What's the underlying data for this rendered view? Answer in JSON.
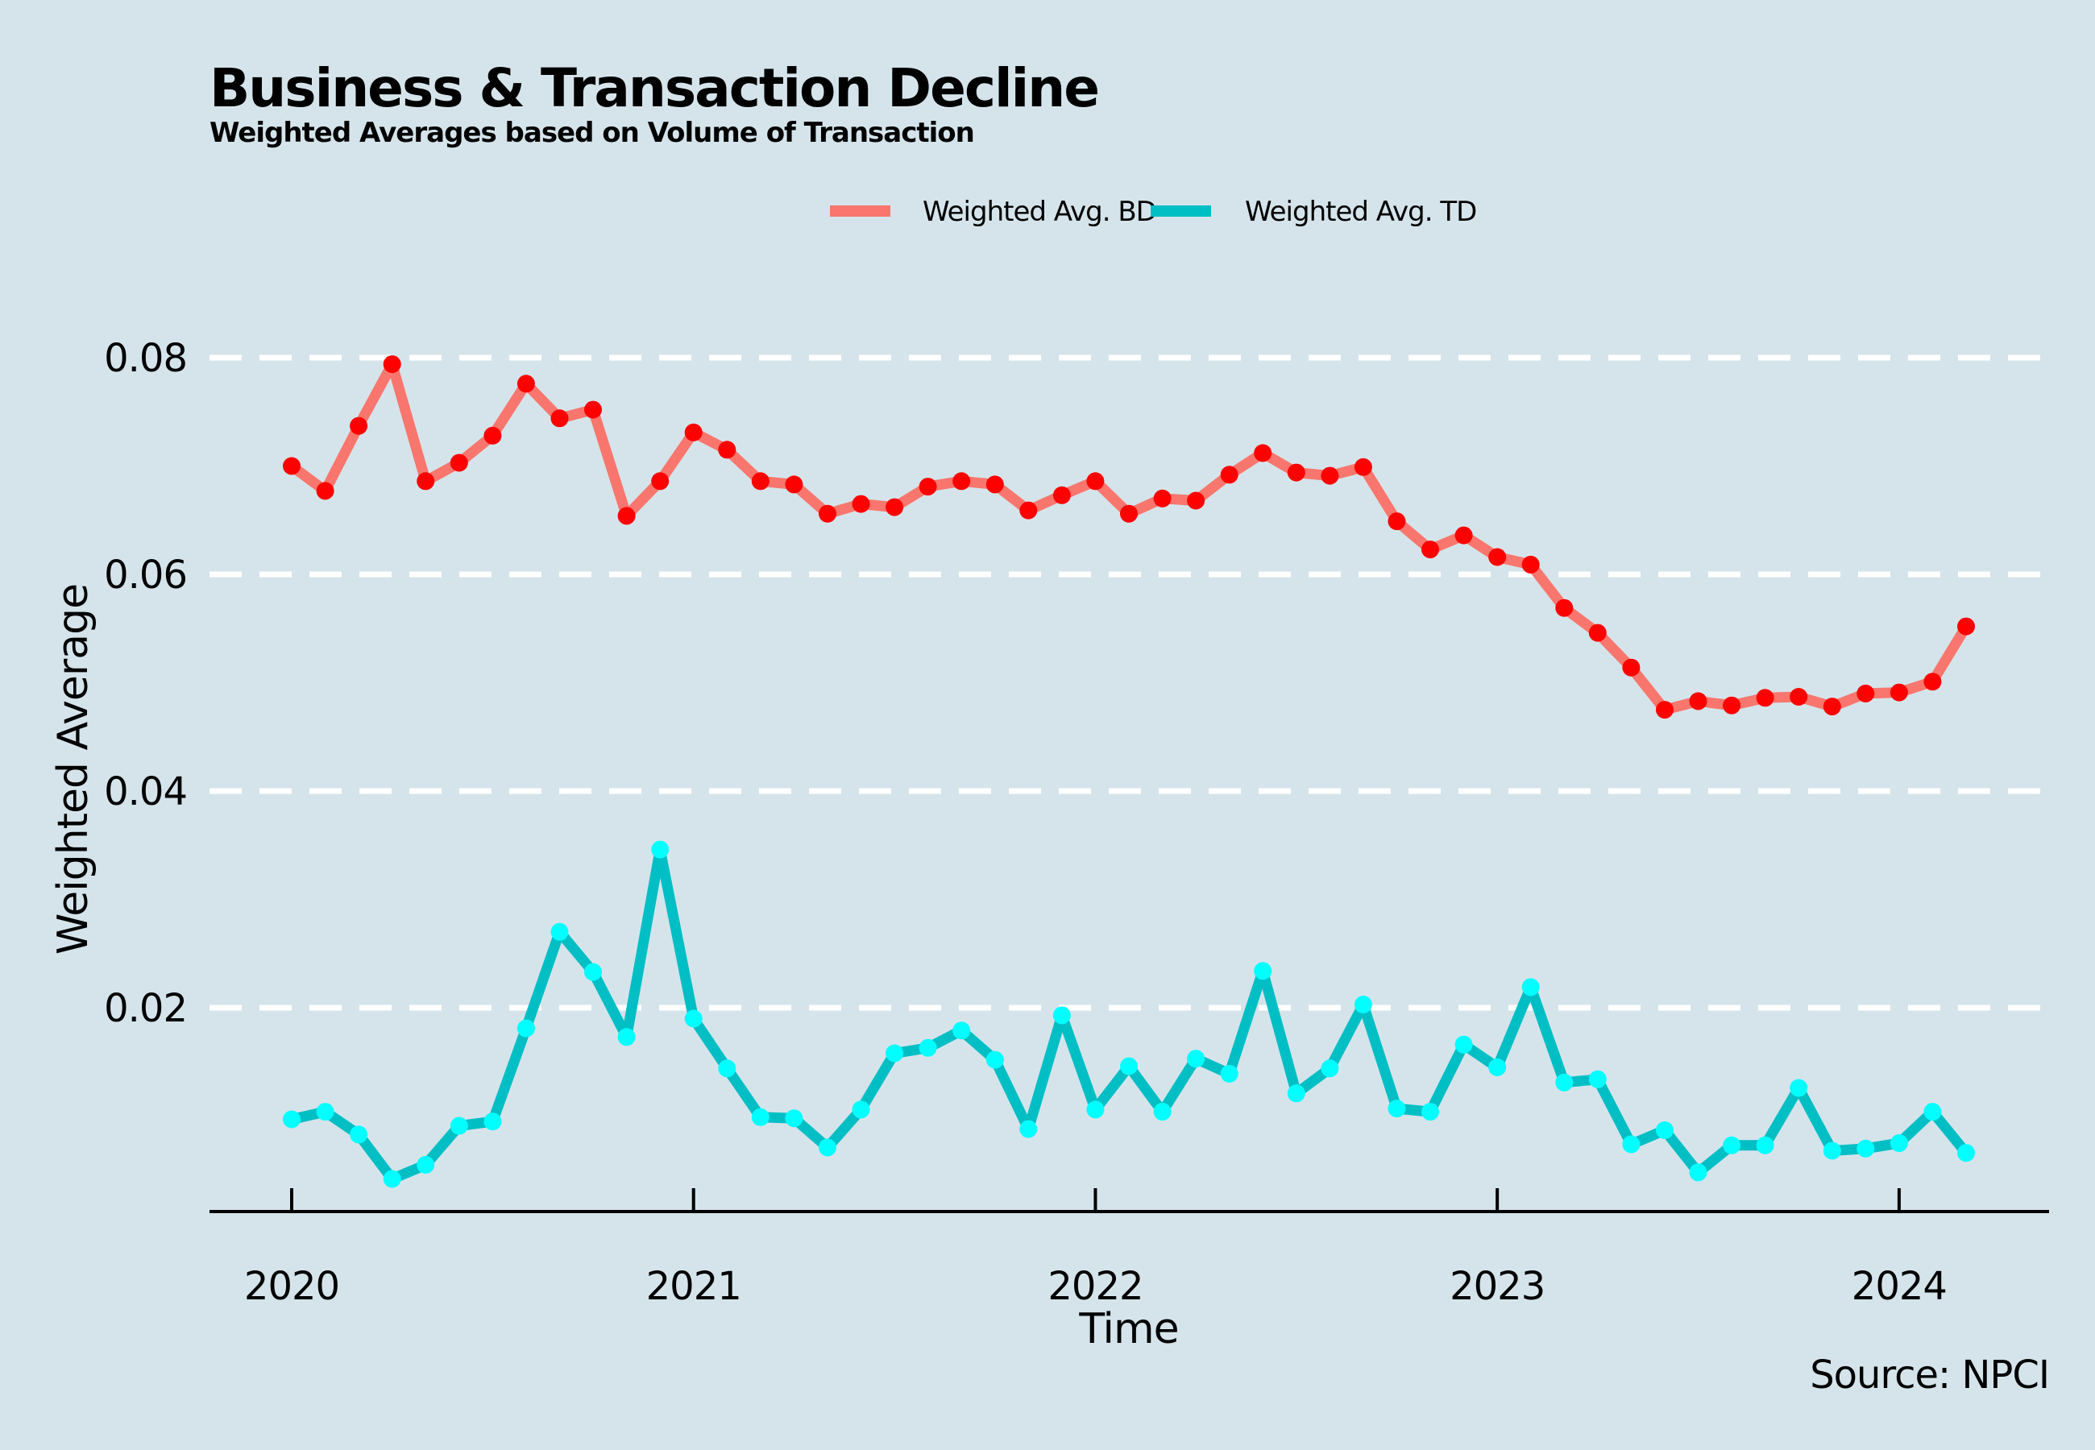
{
  "chart_data": {
    "type": "line",
    "title": "Business & Transaction Decline",
    "subtitle": "Weighted Averages based on Volume of Transaction",
    "xlabel": "Time",
    "ylabel": "Weighted Average",
    "caption": "Source: NPCI",
    "x_ticks": [
      "2020",
      "2021",
      "2022",
      "2023",
      "2024"
    ],
    "y_ticks": [
      "0.02",
      "0.04",
      "0.06",
      "0.08"
    ],
    "ylim": [
      0.0,
      0.088
    ],
    "grid": "horizontal dashed",
    "legend_position": "top",
    "x_start": "2020-01",
    "x_end": "2024-03",
    "x": [
      "2020-01",
      "2020-02",
      "2020-03",
      "2020-04",
      "2020-05",
      "2020-06",
      "2020-07",
      "2020-08",
      "2020-09",
      "2020-10",
      "2020-11",
      "2020-12",
      "2021-01",
      "2021-02",
      "2021-03",
      "2021-04",
      "2021-05",
      "2021-06",
      "2021-07",
      "2021-08",
      "2021-09",
      "2021-10",
      "2021-11",
      "2021-12",
      "2022-01",
      "2022-02",
      "2022-03",
      "2022-04",
      "2022-05",
      "2022-06",
      "2022-07",
      "2022-08",
      "2022-09",
      "2022-10",
      "2022-11",
      "2022-12",
      "2023-01",
      "2023-02",
      "2023-03",
      "2023-04",
      "2023-05",
      "2023-06",
      "2023-07",
      "2023-08",
      "2023-09",
      "2023-10",
      "2023-11",
      "2023-12",
      "2024-01",
      "2024-02",
      "2024-03"
    ],
    "series": [
      {
        "name": "Weighted Avg. BD",
        "line_color": "#f8766d",
        "point_color": "#ff0000",
        "values": [
          0.07,
          0.0677,
          0.0737,
          0.0794,
          0.0686,
          0.0703,
          0.0728,
          0.0776,
          0.0744,
          0.0752,
          0.0654,
          0.0686,
          0.0731,
          0.0715,
          0.0686,
          0.0683,
          0.0656,
          0.0665,
          0.0662,
          0.0681,
          0.0686,
          0.0683,
          0.0659,
          0.0673,
          0.0686,
          0.0656,
          0.067,
          0.0668,
          0.0692,
          0.0712,
          0.0694,
          0.0691,
          0.0699,
          0.0649,
          0.0623,
          0.0636,
          0.0616,
          0.0609,
          0.0569,
          0.0546,
          0.0514,
          0.0475,
          0.0483,
          0.0479,
          0.0486,
          0.0487,
          0.0478,
          0.049,
          0.0491,
          0.0501,
          0.0552
        ]
      },
      {
        "name": "Weighted Avg. TD",
        "line_color": "#00bfc4",
        "point_color": "#00ffff",
        "values": [
          0.0097,
          0.0104,
          0.0083,
          0.0042,
          0.0055,
          0.0091,
          0.0095,
          0.0181,
          0.027,
          0.0233,
          0.0173,
          0.0346,
          0.019,
          0.0144,
          0.0099,
          0.0098,
          0.0071,
          0.0106,
          0.0158,
          0.0163,
          0.0179,
          0.0152,
          0.0088,
          0.0193,
          0.0106,
          0.0146,
          0.0104,
          0.0153,
          0.0139,
          0.0234,
          0.0121,
          0.0144,
          0.0203,
          0.0107,
          0.0104,
          0.0166,
          0.0145,
          0.0219,
          0.0131,
          0.0134,
          0.0074,
          0.0087,
          0.0048,
          0.0073,
          0.0073,
          0.0126,
          0.0068,
          0.007,
          0.0075,
          0.0104,
          0.0066
        ]
      }
    ]
  }
}
